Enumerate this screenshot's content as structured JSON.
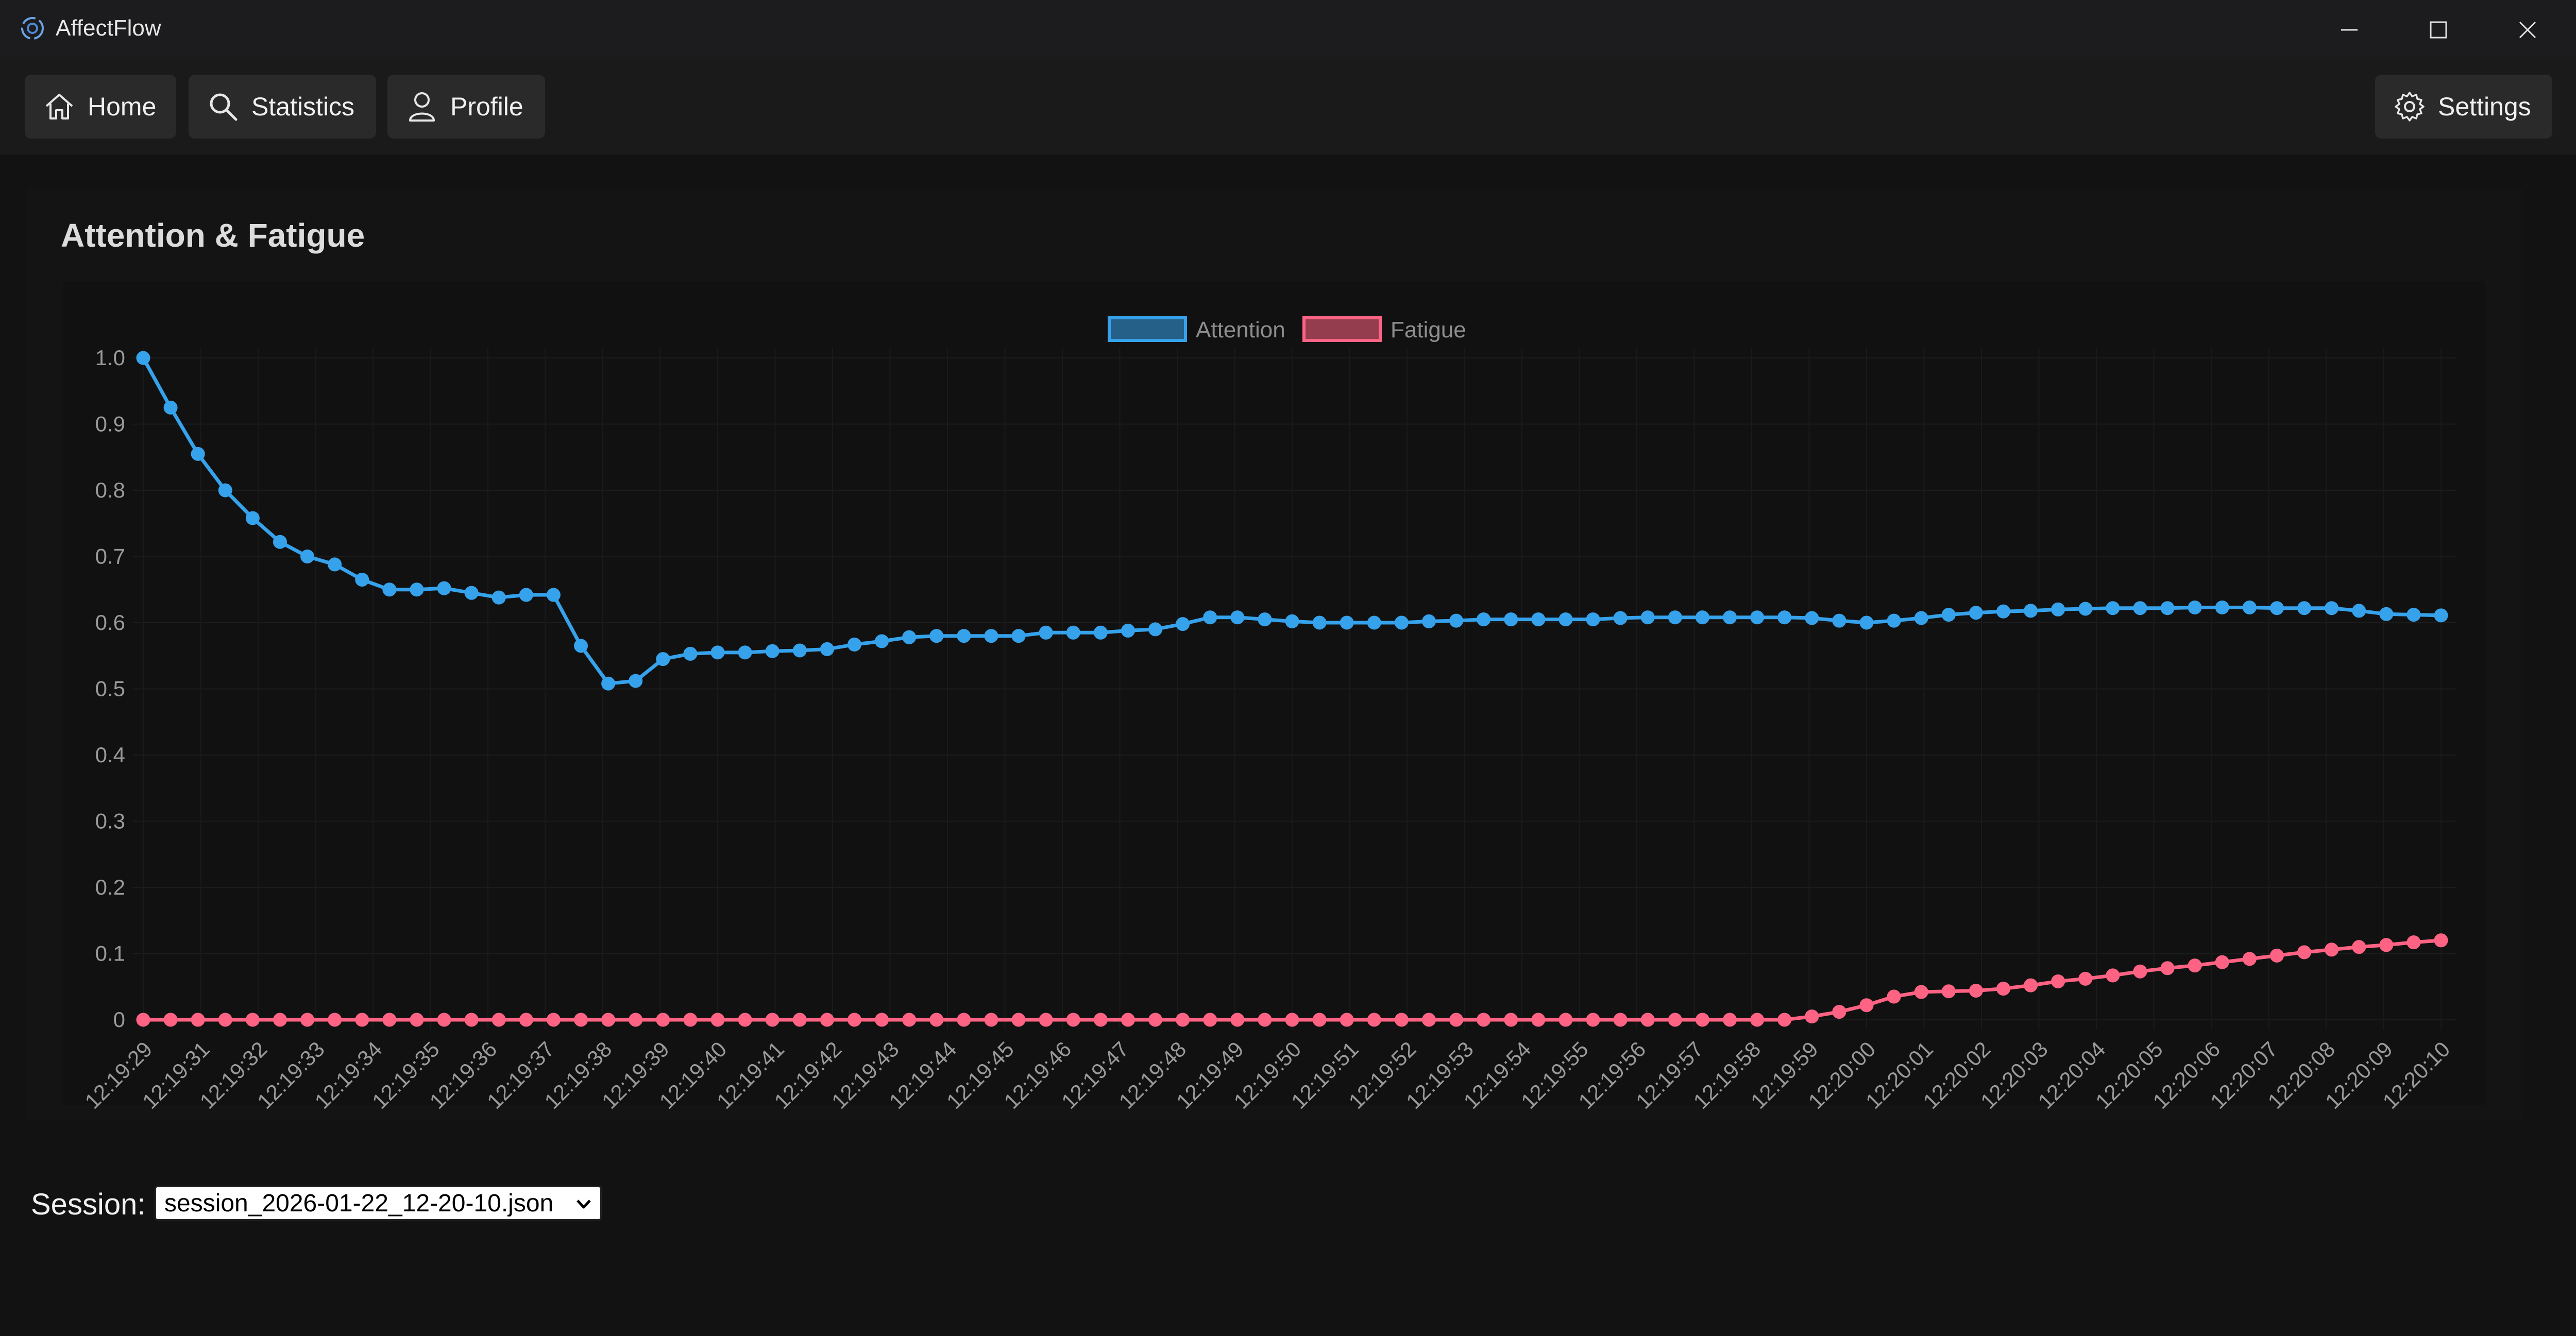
{
  "window": {
    "title": "AffectFlow"
  },
  "nav": {
    "home_label": "Home",
    "statistics_label": "Statistics",
    "profile_label": "Profile",
    "settings_label": "Settings"
  },
  "card": {
    "title": "Attention & Fatigue"
  },
  "session": {
    "label": "Session:",
    "selected": "session_2026-01-22_12-20-10.json"
  },
  "chart_data": {
    "type": "line",
    "title": "",
    "xlabel": "",
    "ylabel": "",
    "ylim": [
      0,
      1.0
    ],
    "yticks": [
      "1.0",
      "0.9",
      "0.8",
      "0.7",
      "0.6",
      "0.5",
      "0.4",
      "0.3",
      "0.2",
      "0.1",
      "0"
    ],
    "legend_position": "top-center",
    "grid": true,
    "x_tick_labels": [
      "12:19:29",
      "12:19:31",
      "12:19:32",
      "12:19:33",
      "12:19:34",
      "12:19:35",
      "12:19:36",
      "12:19:37",
      "12:19:38",
      "12:19:39",
      "12:19:40",
      "12:19:41",
      "12:19:42",
      "12:19:43",
      "12:19:44",
      "12:19:45",
      "12:19:46",
      "12:19:47",
      "12:19:48",
      "12:19:49",
      "12:19:50",
      "12:19:51",
      "12:19:52",
      "12:19:53",
      "12:19:54",
      "12:19:55",
      "12:19:56",
      "12:19:57",
      "12:19:58",
      "12:19:59",
      "12:20:00",
      "12:20:01",
      "12:20:02",
      "12:20:03",
      "12:20:04",
      "12:20:05",
      "12:20:06",
      "12:20:07",
      "12:20:08",
      "12:20:09",
      "12:20:10"
    ],
    "series": [
      {
        "name": "Attention",
        "color": "#36a2eb",
        "values": [
          1.0,
          0.925,
          0.855,
          0.8,
          0.758,
          0.722,
          0.7,
          0.688,
          0.665,
          0.65,
          0.65,
          0.652,
          0.645,
          0.638,
          0.642,
          0.642,
          0.565,
          0.508,
          0.512,
          0.545,
          0.553,
          0.555,
          0.555,
          0.557,
          0.558,
          0.56,
          0.567,
          0.572,
          0.578,
          0.58,
          0.58,
          0.58,
          0.58,
          0.585,
          0.585,
          0.585,
          0.588,
          0.59,
          0.598,
          0.608,
          0.608,
          0.605,
          0.602,
          0.6,
          0.6,
          0.6,
          0.6,
          0.602,
          0.603,
          0.605,
          0.605,
          0.605,
          0.605,
          0.605,
          0.607,
          0.608,
          0.608,
          0.608,
          0.608,
          0.608,
          0.608,
          0.607,
          0.603,
          0.6,
          0.603,
          0.607,
          0.612,
          0.615,
          0.617,
          0.618,
          0.62,
          0.621,
          0.622,
          0.622,
          0.622,
          0.623,
          0.623,
          0.623,
          0.622,
          0.622,
          0.622,
          0.618,
          0.613,
          0.612,
          0.611
        ]
      },
      {
        "name": "Fatigue",
        "color": "#ff6384",
        "values": [
          0,
          0,
          0,
          0,
          0,
          0,
          0,
          0,
          0,
          0,
          0,
          0,
          0,
          0,
          0,
          0,
          0,
          0,
          0,
          0,
          0,
          0,
          0,
          0,
          0,
          0,
          0,
          0,
          0,
          0,
          0,
          0,
          0,
          0,
          0,
          0,
          0,
          0,
          0,
          0,
          0,
          0,
          0,
          0,
          0,
          0,
          0,
          0,
          0,
          0,
          0,
          0,
          0,
          0,
          0,
          0,
          0,
          0,
          0,
          0,
          0,
          0.005,
          0.012,
          0.022,
          0.035,
          0.042,
          0.043,
          0.044,
          0.047,
          0.052,
          0.058,
          0.062,
          0.067,
          0.073,
          0.078,
          0.082,
          0.087,
          0.092,
          0.097,
          0.102,
          0.106,
          0.11,
          0.113,
          0.117,
          0.12
        ]
      }
    ]
  }
}
